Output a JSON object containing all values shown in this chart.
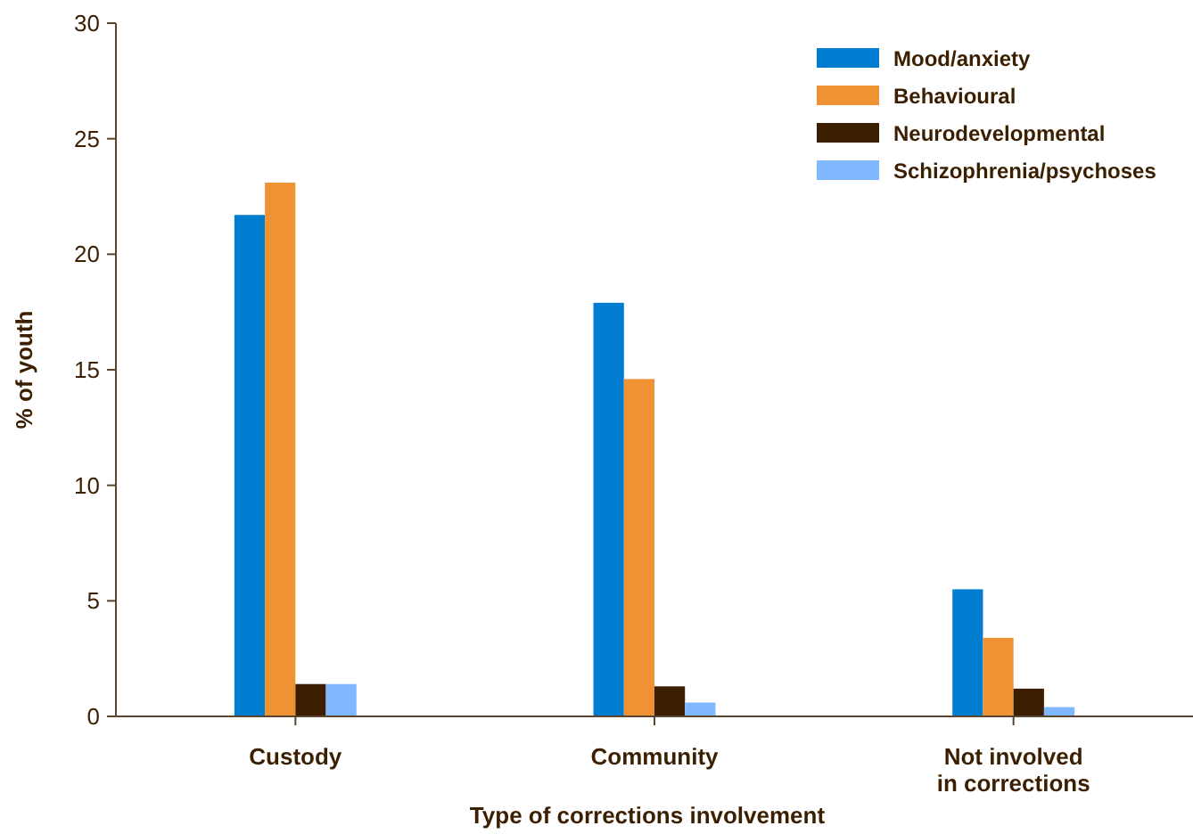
{
  "chart_data": {
    "type": "bar",
    "xlabel": "Type of corrections involvement",
    "ylabel": "% of youth",
    "categories": [
      "Custody",
      "Community",
      "Not involved\nin corrections"
    ],
    "series": [
      {
        "name": "Mood/anxiety",
        "color": "#007dd0",
        "values": [
          21.7,
          17.9,
          5.5
        ]
      },
      {
        "name": "Behavioural",
        "color": "#ef9234",
        "values": [
          23.1,
          14.6,
          3.4
        ]
      },
      {
        "name": "Neurodevelopmental",
        "color": "#3b1e00",
        "values": [
          1.4,
          1.3,
          1.2
        ]
      },
      {
        "name": "Schizophrenia/psychoses",
        "color": "#80b8ff",
        "values": [
          1.4,
          0.6,
          0.4
        ]
      }
    ],
    "ylim": [
      0,
      30
    ],
    "yticks": [
      0,
      5,
      10,
      15,
      20,
      25,
      30
    ],
    "grid": false,
    "legend": "top right"
  }
}
